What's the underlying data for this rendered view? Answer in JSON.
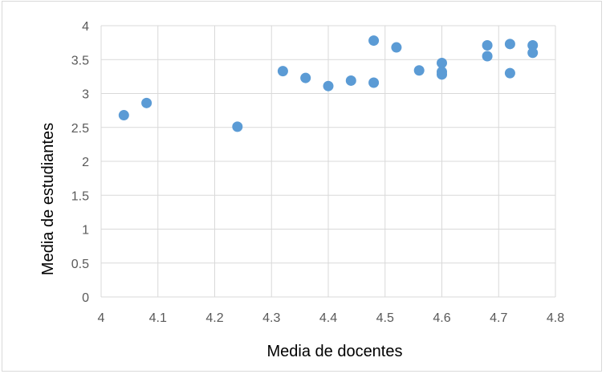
{
  "chart_data": {
    "type": "scatter",
    "xlabel": "Media de docentes",
    "ylabel": "Media de estudiantes",
    "xlim": [
      4,
      4.8
    ],
    "ylim": [
      0,
      4
    ],
    "xticks": [
      "4",
      "4.1",
      "4.2",
      "4.3",
      "4.4",
      "4.5",
      "4.6",
      "4.7",
      "4.8"
    ],
    "yticks": [
      "0",
      "0.5",
      "1",
      "1.5",
      "2",
      "2.5",
      "3",
      "3.5",
      "4"
    ],
    "grid": true,
    "color": "#5b9bd5",
    "points": [
      {
        "x": 4.04,
        "y": 2.68
      },
      {
        "x": 4.08,
        "y": 2.86
      },
      {
        "x": 4.24,
        "y": 2.51
      },
      {
        "x": 4.32,
        "y": 3.33
      },
      {
        "x": 4.36,
        "y": 3.23
      },
      {
        "x": 4.4,
        "y": 3.11
      },
      {
        "x": 4.44,
        "y": 3.19
      },
      {
        "x": 4.48,
        "y": 3.78
      },
      {
        "x": 4.48,
        "y": 3.16
      },
      {
        "x": 4.52,
        "y": 3.68
      },
      {
        "x": 4.56,
        "y": 3.34
      },
      {
        "x": 4.6,
        "y": 3.45
      },
      {
        "x": 4.6,
        "y": 3.32
      },
      {
        "x": 4.6,
        "y": 3.28
      },
      {
        "x": 4.68,
        "y": 3.71
      },
      {
        "x": 4.68,
        "y": 3.55
      },
      {
        "x": 4.72,
        "y": 3.73
      },
      {
        "x": 4.72,
        "y": 3.3
      },
      {
        "x": 4.76,
        "y": 3.71
      },
      {
        "x": 4.76,
        "y": 3.6
      }
    ]
  }
}
